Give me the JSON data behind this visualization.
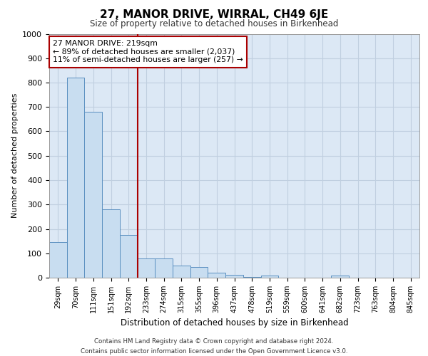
{
  "title": "27, MANOR DRIVE, WIRRAL, CH49 6JE",
  "subtitle": "Size of property relative to detached houses in Birkenhead",
  "xlabel": "Distribution of detached houses by size in Birkenhead",
  "ylabel": "Number of detached properties",
  "categories": [
    "29sqm",
    "70sqm",
    "111sqm",
    "151sqm",
    "192sqm",
    "233sqm",
    "274sqm",
    "315sqm",
    "355sqm",
    "396sqm",
    "437sqm",
    "478sqm",
    "519sqm",
    "559sqm",
    "600sqm",
    "641sqm",
    "682sqm",
    "723sqm",
    "763sqm",
    "804sqm",
    "845sqm"
  ],
  "values": [
    145,
    820,
    680,
    280,
    175,
    78,
    78,
    50,
    43,
    20,
    12,
    3,
    10,
    0,
    0,
    0,
    8,
    0,
    0,
    0,
    0
  ],
  "bar_color": "#c8ddf0",
  "bar_edge_color": "#5a8fc0",
  "vline_color": "#aa0000",
  "vline_x": 4.5,
  "annotation_text": "27 MANOR DRIVE: 219sqm\n← 89% of detached houses are smaller (2,037)\n11% of semi-detached houses are larger (257) →",
  "annotation_box_color": "#ffffff",
  "annotation_box_edge_color": "#aa0000",
  "ylim": [
    0,
    1000
  ],
  "yticks": [
    0,
    100,
    200,
    300,
    400,
    500,
    600,
    700,
    800,
    900,
    1000
  ],
  "grid_color": "#c0cfe0",
  "bg_color": "#dce8f5",
  "footer_line1": "Contains HM Land Registry data © Crown copyright and database right 2024.",
  "footer_line2": "Contains public sector information licensed under the Open Government Licence v3.0."
}
